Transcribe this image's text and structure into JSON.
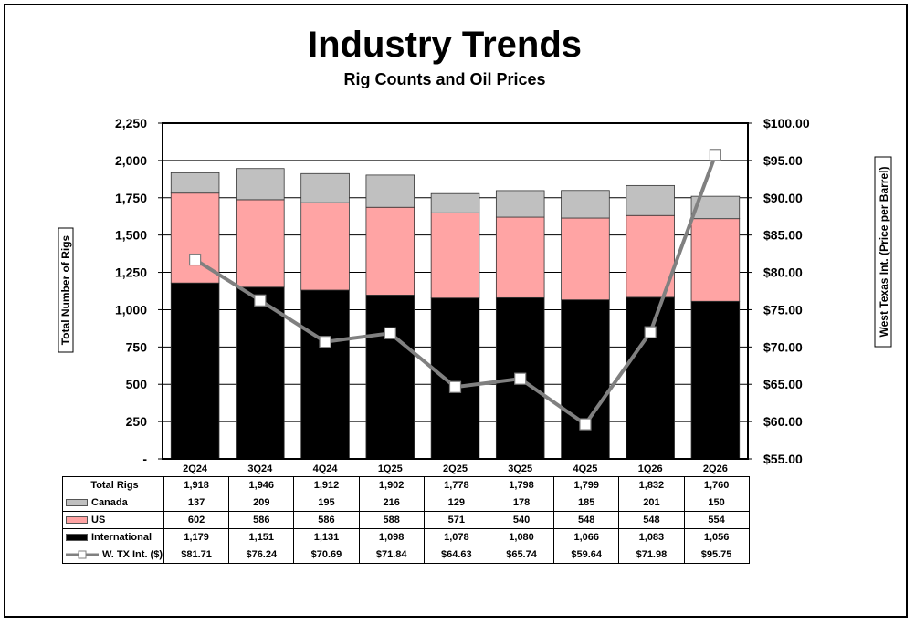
{
  "title": "Industry Trends",
  "subtitle": "Rig Counts and Oil Prices",
  "chart_data": {
    "type": "bar",
    "stacked": true,
    "categories": [
      "2Q24",
      "3Q24",
      "4Q24",
      "1Q25",
      "2Q25",
      "3Q25",
      "4Q25",
      "1Q26",
      "2Q26"
    ],
    "series": [
      {
        "name": "International",
        "values": [
          1179,
          1151,
          1131,
          1098,
          1078,
          1080,
          1066,
          1083,
          1056
        ],
        "color": "#000000"
      },
      {
        "name": "US",
        "values": [
          602,
          586,
          586,
          588,
          571,
          540,
          548,
          548,
          554
        ],
        "color": "#ffa4a4"
      },
      {
        "name": "Canada",
        "values": [
          137,
          209,
          195,
          216,
          129,
          178,
          185,
          201,
          150
        ],
        "color": "#c0c0c0"
      }
    ],
    "line_series": {
      "name": "W. TX Int. ($)",
      "values": [
        81.71,
        76.24,
        70.69,
        71.84,
        64.63,
        65.74,
        59.64,
        71.98,
        95.75
      ],
      "color": "#808080",
      "axis": "right"
    },
    "total_rigs": [
      1918,
      1946,
      1912,
      1902,
      1778,
      1798,
      1799,
      1832,
      1760
    ],
    "ylabel": "Total Number of Rigs",
    "y2label": "West Texas Int. (Price per Barrel)",
    "ylim": [
      0,
      2250
    ],
    "y2lim": [
      55,
      100
    ],
    "yticks": [
      "-",
      "250",
      "500",
      "750",
      "1,000",
      "1,250",
      "1,500",
      "1,750",
      "2,000",
      "2,250"
    ],
    "y2ticks": [
      "$55.00",
      "$60.00",
      "$65.00",
      "$70.00",
      "$75.00",
      "$80.00",
      "$85.00",
      "$90.00",
      "$95.00",
      "$100.00"
    ],
    "grid": true,
    "legend": "table-below"
  },
  "table": {
    "rows": [
      {
        "label": "Total Rigs",
        "key": "total",
        "cells": [
          "1,918",
          "1,946",
          "1,912",
          "1,902",
          "1,778",
          "1,798",
          "1,799",
          "1,832",
          "1,760"
        ]
      },
      {
        "label": "Canada",
        "key": "canada",
        "swatch": "#c0c0c0",
        "cells": [
          "137",
          "209",
          "195",
          "216",
          "129",
          "178",
          "185",
          "201",
          "150"
        ]
      },
      {
        "label": "US",
        "key": "us",
        "swatch": "#ffa4a4",
        "cells": [
          "602",
          "586",
          "586",
          "588",
          "571",
          "540",
          "548",
          "548",
          "554"
        ]
      },
      {
        "label": "International",
        "key": "intl",
        "swatch": "#000000",
        "cells": [
          "1,179",
          "1,151",
          "1,131",
          "1,098",
          "1,078",
          "1,080",
          "1,066",
          "1,083",
          "1,056"
        ]
      },
      {
        "label": "W. TX Int. ($)",
        "key": "wti",
        "line": true,
        "cells": [
          "$81.71",
          "$76.24",
          "$70.69",
          "$71.84",
          "$64.63",
          "$65.74",
          "$59.64",
          "$71.98",
          "$95.75"
        ]
      }
    ]
  }
}
